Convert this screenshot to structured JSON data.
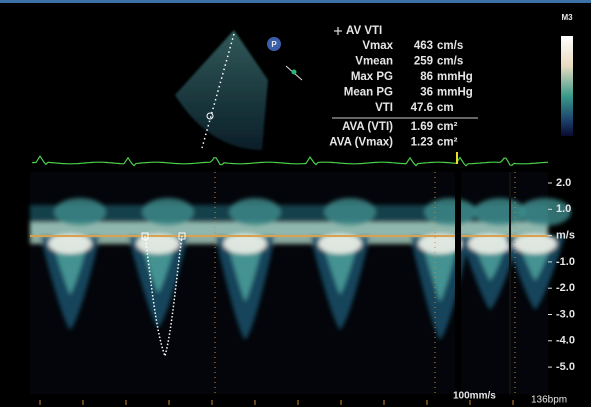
{
  "header": {
    "mode": "M3"
  },
  "sector": {
    "badge": "P"
  },
  "measurements": {
    "title": "AV VTI",
    "rows": [
      {
        "label": "Vmax",
        "value": "463",
        "unit": "cm/s"
      },
      {
        "label": "Vmean",
        "value": "259",
        "unit": "cm/s"
      },
      {
        "label": "Max PG",
        "value": "86",
        "unit": "mmHg"
      },
      {
        "label": "Mean PG",
        "value": "36",
        "unit": "mmHg"
      },
      {
        "label": "VTI",
        "value": "47.6",
        "unit": "cm"
      }
    ],
    "results": [
      {
        "label": "AVA (VTI)",
        "value": "1.69",
        "unit": "cm²"
      },
      {
        "label": "AVA (Vmax)",
        "value": "1.23",
        "unit": "cm²"
      }
    ]
  },
  "scale": {
    "labels": [
      "2.0",
      "1.0",
      "m/s",
      "-1.0",
      "-2.0",
      "-3.0",
      "-4.0",
      "-5.0"
    ]
  },
  "footer": {
    "sweep": "100mm/s",
    "heart_rate": "136bpm"
  }
}
